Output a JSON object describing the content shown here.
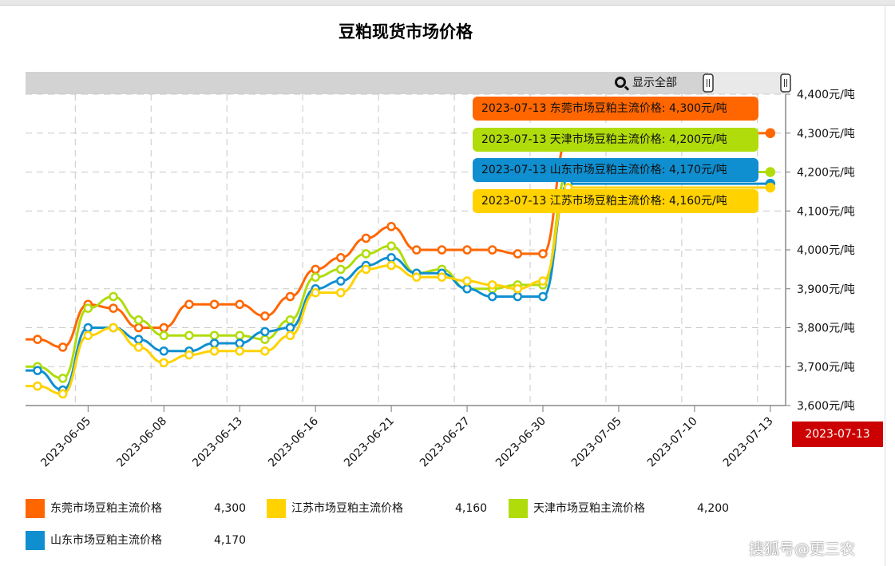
{
  "chart_data": {
    "type": "line",
    "title": "豆粕现货市场价格",
    "y_unit_suffix": "元/吨",
    "ylim": [
      3600,
      4400
    ],
    "yticks": [
      "4,400元/吨",
      "4,300元/吨",
      "4,200元/吨",
      "4,100元/吨",
      "4,000元/吨",
      "3,900元/吨",
      "3,800元/吨",
      "3,700元/吨",
      "3,600元/吨"
    ],
    "ytick_values": [
      4400,
      4300,
      4200,
      4100,
      4000,
      3900,
      3800,
      3700,
      3600
    ],
    "xtick_labels": [
      "2023-06-05",
      "2023-06-08",
      "2023-06-13",
      "2023-06-16",
      "2023-06-21",
      "2023-06-27",
      "2023-06-30",
      "2023-07-05",
      "2023-07-10",
      "2023-07-13"
    ],
    "xtick_index": [
      2,
      5,
      8,
      11,
      14,
      17,
      20,
      23,
      26,
      29
    ],
    "point_index": [
      0,
      1,
      2,
      3,
      4,
      5,
      6,
      7,
      8,
      9,
      10,
      11,
      12,
      13,
      14,
      15,
      16,
      17,
      18,
      19,
      20,
      21,
      29
    ],
    "grid": true,
    "series": [
      {
        "name": "东莞市场豆粕主流价格",
        "color": "#ff6600",
        "values": [
          3770,
          3750,
          3860,
          3850,
          3800,
          3800,
          3860,
          3860,
          3860,
          3830,
          3880,
          3950,
          3980,
          4030,
          4060,
          4000,
          4000,
          4000,
          4000,
          3990,
          3990,
          4290,
          4300
        ]
      },
      {
        "name": "天津市场豆粕主流价格",
        "color": "#b0dc0b",
        "values": [
          3700,
          3670,
          3850,
          3880,
          3820,
          3780,
          3780,
          3780,
          3780,
          3770,
          3820,
          3930,
          3950,
          3990,
          4010,
          3940,
          3950,
          3900,
          3900,
          3910,
          3910,
          4200,
          4200
        ]
      },
      {
        "name": "山东市场豆粕主流价格",
        "color": "#0f8fd0",
        "values": [
          3690,
          3640,
          3800,
          3800,
          3770,
          3740,
          3740,
          3760,
          3760,
          3790,
          3800,
          3900,
          3920,
          3960,
          3980,
          3940,
          3940,
          3900,
          3880,
          3880,
          3880,
          4170,
          4170
        ]
      },
      {
        "name": "江苏市场豆粕主流价格",
        "color": "#ffd200",
        "values": [
          3650,
          3630,
          3780,
          3800,
          3750,
          3710,
          3730,
          3740,
          3740,
          3740,
          3780,
          3890,
          3890,
          3950,
          3960,
          3930,
          3930,
          3920,
          3910,
          3900,
          3920,
          4160,
          4160
        ]
      }
    ]
  },
  "tooltips": [
    {
      "text": "2023-07-13 东莞市场豆粕主流价格: 4,300元/吨",
      "color": "#ff6600"
    },
    {
      "text": "2023-07-13 天津市场豆粕主流价格: 4,200元/吨",
      "color": "#b0dc0b"
    },
    {
      "text": "2023-07-13 山东市场豆粕主流价格: 4,170元/吨",
      "color": "#0f8fd0"
    },
    {
      "text": "2023-07-13 江苏市场豆粕主流价格: 4,160元/吨",
      "color": "#ffd200"
    }
  ],
  "show_all_label": "显示全部",
  "crosshair_date": "2023-07-13",
  "legend": [
    {
      "name": "东莞市场豆粕主流价格",
      "value": "4,300",
      "color": "#ff6600"
    },
    {
      "name": "江苏市场豆粕主流价格",
      "value": "4,160",
      "color": "#ffd200"
    },
    {
      "name": "天津市场豆粕主流价格",
      "value": "4,200",
      "color": "#b0dc0b"
    },
    {
      "name": "山东市场豆粕主流价格",
      "value": "4,170",
      "color": "#0f8fd0"
    }
  ],
  "watermark": "搜狐号@更三农"
}
